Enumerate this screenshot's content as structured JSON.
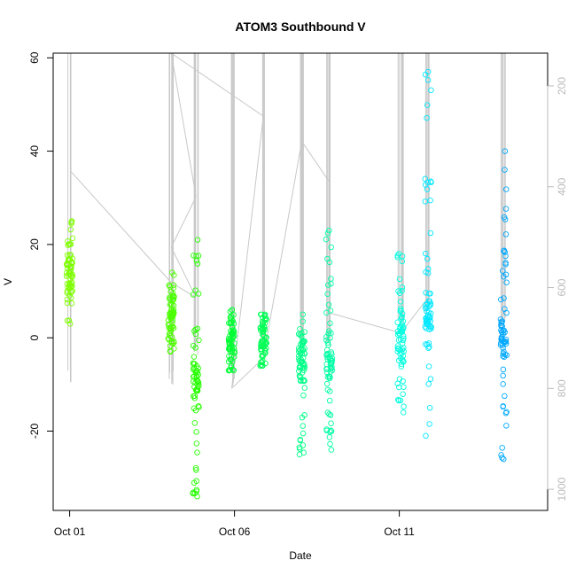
{
  "chart_data": {
    "type": "scatter",
    "title": "ATOM3 Southbound V",
    "xlabel": "Date",
    "ylabel": "V",
    "xlim": [
      "2014-09-30T12:00",
      "2014-10-15T12:00"
    ],
    "ylim": [
      -37,
      61
    ],
    "x_ticks": [
      {
        "date": "2014-10-01",
        "label": "Oct 01"
      },
      {
        "date": "2014-10-06",
        "label": "Oct 06"
      },
      {
        "date": "2014-10-11",
        "label": "Oct 11"
      }
    ],
    "y_ticks": [
      -20,
      0,
      20,
      40,
      60
    ],
    "y2_ticks": [
      200,
      400,
      600,
      800,
      1000
    ],
    "y2_range": [
      1042,
      135
    ],
    "y2_reversed": true,
    "line_color": "#c8c8c8",
    "point_style": "open-circle",
    "series": [
      {
        "time": "2014-10-01T00:00",
        "color": "#7fff00",
        "v_min": 3,
        "v_max": 25,
        "v_center": 14
      },
      {
        "time": "2014-10-04T02:00",
        "color": "#4cff00",
        "v_min": -3,
        "v_max": 14,
        "v_center": 4
      },
      {
        "time": "2014-10-04T20:00",
        "color": "#26ff00",
        "v_min": -34,
        "v_max": 21,
        "v_center": -8
      },
      {
        "time": "2014-10-05T22:00",
        "color": "#00ff33",
        "v_min": -7,
        "v_max": 6,
        "v_center": -1
      },
      {
        "time": "2014-10-06T21:00",
        "color": "#00ff55",
        "v_min": -6,
        "v_max": 5,
        "v_center": 0
      },
      {
        "time": "2014-10-08T01:00",
        "color": "#00ff88",
        "v_min": -25,
        "v_max": 5,
        "v_center": -5
      },
      {
        "time": "2014-10-08T21:00",
        "color": "#00ffa5",
        "v_min": -24,
        "v_max": 23,
        "v_center": -5
      },
      {
        "time": "2014-10-11T01:00",
        "color": "#00ffe0",
        "v_min": -16,
        "v_max": 18,
        "v_center": 0
      },
      {
        "time": "2014-10-11T21:00",
        "color": "#00e8ff",
        "v_min": -21,
        "v_max": 57,
        "v_center": 3
      },
      {
        "time": "2014-10-14T04:00",
        "color": "#00a8ff",
        "v_min": -26,
        "v_max": 40,
        "v_center": 0
      }
    ],
    "depth_profiles": [
      {
        "time": "2014-10-01T00:00",
        "depth_min": 135,
        "depth_max": 800
      },
      {
        "time": "2014-10-04T02:00",
        "depth_min": 135,
        "depth_max": 800
      },
      {
        "time": "2014-10-04T20:00",
        "depth_min": 135,
        "depth_max": 740
      },
      {
        "time": "2014-10-05T22:00",
        "depth_min": 135,
        "depth_max": 800
      },
      {
        "time": "2014-10-06T21:00",
        "depth_min": 135,
        "depth_max": 730
      },
      {
        "time": "2014-10-08T01:00",
        "depth_min": 135,
        "depth_max": 720
      },
      {
        "time": "2014-10-08T21:00",
        "depth_min": 135,
        "depth_max": 730
      },
      {
        "time": "2014-10-11T01:00",
        "depth_min": 135,
        "depth_max": 690
      },
      {
        "time": "2014-10-11T21:00",
        "depth_min": 135,
        "depth_max": 670
      },
      {
        "time": "2014-10-14T04:00",
        "depth_min": 135,
        "depth_max": 700
      }
    ],
    "transect_line": [
      {
        "time": "2014-10-01T01:00",
        "depth": 370
      },
      {
        "time": "2014-10-04T02:00",
        "depth": 590
      },
      {
        "time": "2014-10-04T20:00",
        "depth": 620
      },
      {
        "time": "2014-10-04T02:00",
        "depth": 520
      },
      {
        "time": "2014-10-04T20:00",
        "depth": 420
      },
      {
        "time": "2014-10-04T02:00",
        "depth": 135
      },
      {
        "time": "2014-10-06T21:00",
        "depth": 260
      },
      {
        "time": "2014-10-05T22:00",
        "depth": 800
      },
      {
        "time": "2014-10-06T21:00",
        "depth": 740
      },
      {
        "time": "2014-10-08T01:00",
        "depth": 310
      },
      {
        "time": "2014-10-08T21:00",
        "depth": 390
      },
      {
        "time": "2014-10-08T21:00",
        "depth": 650
      },
      {
        "time": "2014-10-11T01:00",
        "depth": 690
      },
      {
        "time": "2014-10-11T21:00",
        "depth": 620
      }
    ]
  }
}
